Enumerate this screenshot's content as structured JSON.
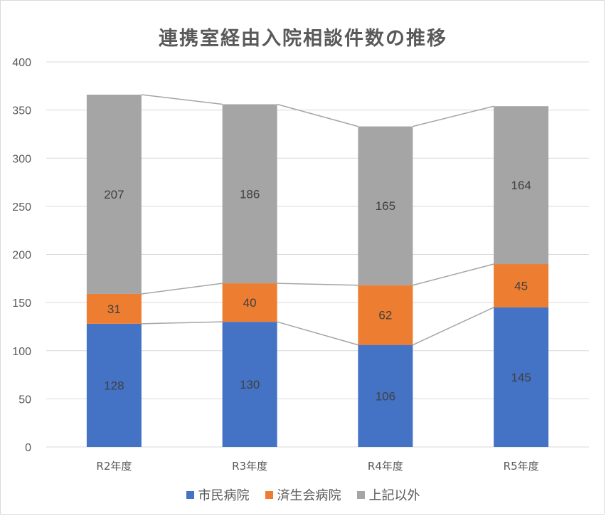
{
  "chart_data": {
    "type": "bar",
    "stacked": true,
    "title": "連携室経由入院相談件数の推移",
    "categories": [
      "R2年度",
      "R3年度",
      "R4年度",
      "R5年度"
    ],
    "series": [
      {
        "name": "市民病院",
        "values": [
          128,
          130,
          106,
          145
        ],
        "color": "#4472c4"
      },
      {
        "name": "済生会病院",
        "values": [
          31,
          40,
          62,
          45
        ],
        "color": "#ed7d31"
      },
      {
        "name": "上記以外",
        "values": [
          207,
          186,
          165,
          164
        ],
        "color": "#a5a5a5"
      }
    ],
    "ylim": [
      0,
      400
    ],
    "yticks": [
      0,
      50,
      100,
      150,
      200,
      250,
      300,
      350,
      400
    ],
    "grid": true,
    "series_lines": true,
    "legend": "bottom",
    "data_labels": true
  }
}
